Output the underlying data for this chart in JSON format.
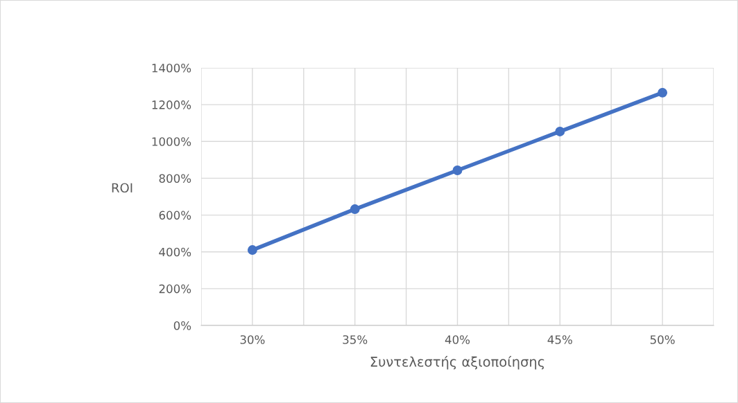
{
  "chart_data": {
    "type": "line",
    "xlabel": "Συντελεστής αξιοποίησης",
    "ylabel": "ROI",
    "categories": [
      "30%",
      "35%",
      "40%",
      "45%",
      "50%"
    ],
    "series": [
      {
        "color": "#4472c4",
        "values": [
          410,
          632,
          843,
          1054,
          1265
        ]
      }
    ],
    "ylim": [
      0,
      1400
    ],
    "yticks": [
      {
        "value": 0,
        "label": "0%"
      },
      {
        "value": 200,
        "label": "200%"
      },
      {
        "value": 400,
        "label": "400%"
      },
      {
        "value": 600,
        "label": "600%"
      },
      {
        "value": 800,
        "label": "800%"
      },
      {
        "value": 1000,
        "label": "1000%"
      },
      {
        "value": 1200,
        "label": "1200%"
      },
      {
        "value": 1400,
        "label": "1400%"
      }
    ],
    "grid": true,
    "marker": "circle",
    "line_style": "solid"
  }
}
